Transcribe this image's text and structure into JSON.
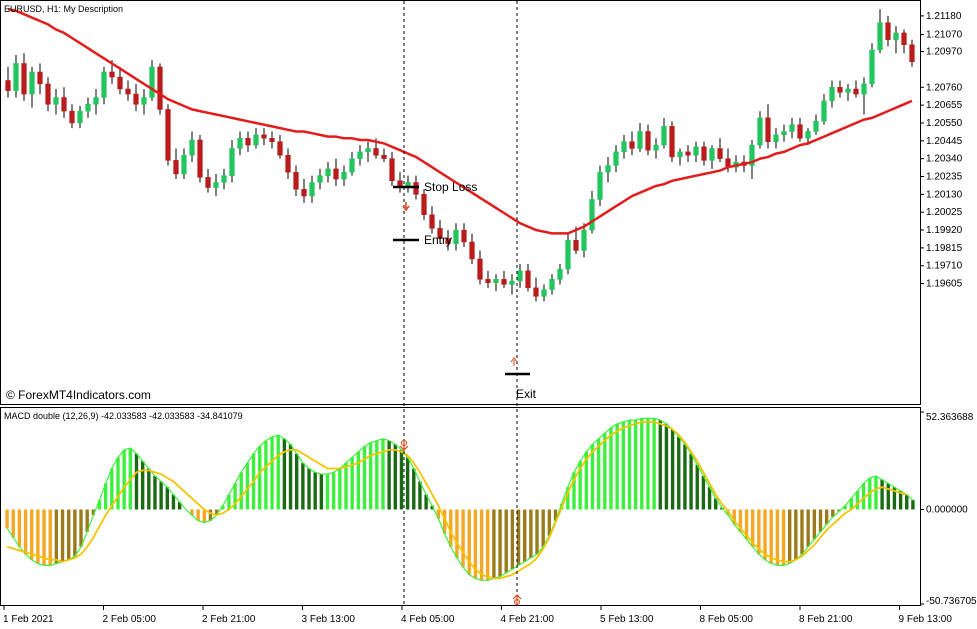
{
  "colors": {
    "bull": "#22c55e",
    "bear": "#b91c1c",
    "ma": "#e31b1b",
    "hist_bull_bright": "#3ef03e",
    "hist_bull_dark": "#1a6a14",
    "hist_bear_bright": "#f5a623",
    "hist_bear_dark": "#9a7a1a",
    "signal": "#f5c400",
    "axis": "#000000"
  },
  "main": {
    "title": "EURUSD, H1:  My Description",
    "watermark": "© ForexMT4Indicators.com",
    "annotations": {
      "stop_loss": "Stop Loss",
      "entry": "Entry",
      "exit": "Exit"
    }
  },
  "sub": {
    "title": "MACD double (12,26,9) -42.033583 -42.033583 -34.841079",
    "y_ticks": [
      "52.363688",
      "0.000000",
      "-50.736705"
    ]
  },
  "chart_data": [
    {
      "type": "candlestick",
      "title": "EURUSD, H1:  My Description",
      "ylim": [
        1.1892,
        1.2125
      ],
      "y_ticks": [
        1.2118,
        1.2107,
        1.2097,
        1.2076,
        1.20655,
        1.2055,
        1.20445,
        1.2034,
        1.20235,
        1.2013,
        1.20025,
        1.1992,
        1.19815,
        1.1971,
        1.19605
      ],
      "x_ticks": [
        "1 Feb 2021",
        "2 Feb 05:00",
        "2 Feb 21:00",
        "3 Feb 13:00",
        "4 Feb 05:00",
        "4 Feb 21:00",
        "5 Feb 13:00",
        "8 Feb 05:00",
        "8 Feb 21:00",
        "9 Feb 13:00"
      ],
      "candles": [
        [
          1.208,
          1.2088,
          1.207,
          1.2074
        ],
        [
          1.2074,
          1.2095,
          1.207,
          1.209
        ],
        [
          1.209,
          1.2096,
          1.2068,
          1.2072
        ],
        [
          1.2072,
          1.2088,
          1.2064,
          1.2085
        ],
        [
          1.2085,
          1.209,
          1.2072,
          1.2078
        ],
        [
          1.2078,
          1.2082,
          1.2062,
          1.2066
        ],
        [
          1.2066,
          1.2075,
          1.206,
          1.207
        ],
        [
          1.207,
          1.2076,
          1.2058,
          1.2062
        ],
        [
          1.2062,
          1.2066,
          1.2052,
          1.2055
        ],
        [
          1.2055,
          1.2065,
          1.2052,
          1.2062
        ],
        [
          1.2062,
          1.207,
          1.2058,
          1.2066
        ],
        [
          1.2066,
          1.2075,
          1.206,
          1.207
        ],
        [
          1.207,
          1.2088,
          1.2066,
          1.2085
        ],
        [
          1.2085,
          1.2092,
          1.2078,
          1.2082
        ],
        [
          1.2082,
          1.2088,
          1.2072,
          1.2075
        ],
        [
          1.2075,
          1.208,
          1.2068,
          1.2072
        ],
        [
          1.2072,
          1.2078,
          1.2062,
          1.2066
        ],
        [
          1.2066,
          1.2075,
          1.206,
          1.207
        ],
        [
          1.207,
          1.2092,
          1.2068,
          1.2088
        ],
        [
          1.2088,
          1.209,
          1.206,
          1.2063
        ],
        [
          1.2063,
          1.2066,
          1.203,
          1.2033
        ],
        [
          1.2033,
          1.204,
          1.2022,
          1.2025
        ],
        [
          1.2025,
          1.204,
          1.2022,
          1.2036
        ],
        [
          1.2036,
          1.205,
          1.2032,
          1.2045
        ],
        [
          1.2045,
          1.2048,
          1.202,
          1.2023
        ],
        [
          1.2023,
          1.2028,
          1.2014,
          1.2017
        ],
        [
          1.2017,
          1.2025,
          1.2012,
          1.202
        ],
        [
          1.202,
          1.2028,
          1.2016,
          1.2024
        ],
        [
          1.2024,
          1.2045,
          1.202,
          1.204
        ],
        [
          1.204,
          1.205,
          1.2036,
          1.2046
        ],
        [
          1.2046,
          1.205,
          1.2038,
          1.2042
        ],
        [
          1.2042,
          1.2052,
          1.204,
          1.2048
        ],
        [
          1.2048,
          1.2052,
          1.2042,
          1.2046
        ],
        [
          1.2046,
          1.205,
          1.204,
          1.2044
        ],
        [
          1.2044,
          1.2048,
          1.2034,
          1.2036
        ],
        [
          1.2036,
          1.204,
          1.2022,
          1.2026
        ],
        [
          1.2026,
          1.203,
          1.2012,
          1.2016
        ],
        [
          1.2016,
          1.2022,
          1.2008,
          1.2012
        ],
        [
          1.2012,
          1.2024,
          1.2008,
          1.202
        ],
        [
          1.202,
          1.2028,
          1.2016,
          1.2024
        ],
        [
          1.2024,
          1.2032,
          1.202,
          1.2028
        ],
        [
          1.2028,
          1.2034,
          1.2018,
          1.2022
        ],
        [
          1.2022,
          1.203,
          1.2018,
          1.2026
        ],
        [
          1.2026,
          1.2038,
          1.2024,
          1.2034
        ],
        [
          1.2034,
          1.2042,
          1.203,
          1.2038
        ],
        [
          1.2038,
          1.2044,
          1.2032,
          1.204
        ],
        [
          1.204,
          1.2046,
          1.2034,
          1.2036
        ],
        [
          1.2036,
          1.204,
          1.2032,
          1.2034
        ],
        [
          1.2034,
          1.2038,
          1.2018,
          1.2021
        ],
        [
          1.2021,
          1.2026,
          1.2014,
          1.2018
        ],
        [
          1.2018,
          1.2024,
          1.2014,
          1.202
        ],
        [
          1.202,
          1.2024,
          1.201,
          1.2013
        ],
        [
          1.2013,
          1.2016,
          1.1998,
          1.2001
        ],
        [
          1.2001,
          1.2006,
          1.199,
          1.1993
        ],
        [
          1.1993,
          1.1998,
          1.1984,
          1.1987
        ],
        [
          1.1987,
          1.1992,
          1.198,
          1.1984
        ],
        [
          1.1984,
          1.1996,
          1.198,
          1.1992
        ],
        [
          1.1992,
          1.1996,
          1.1982,
          1.1985
        ],
        [
          1.1985,
          1.199,
          1.1972,
          1.1975
        ],
        [
          1.1975,
          1.198,
          1.196,
          1.1963
        ],
        [
          1.1963,
          1.1968,
          1.1958,
          1.1961
        ],
        [
          1.1961,
          1.1966,
          1.1956,
          1.1963
        ],
        [
          1.1963,
          1.1968,
          1.1958,
          1.196
        ],
        [
          1.196,
          1.1966,
          1.1954,
          1.1962
        ],
        [
          1.1962,
          1.1972,
          1.1958,
          1.1968
        ],
        [
          1.1968,
          1.1972,
          1.1956,
          1.1958
        ],
        [
          1.1958,
          1.1964,
          1.195,
          1.1953
        ],
        [
          1.1953,
          1.196,
          1.195,
          1.1957
        ],
        [
          1.1957,
          1.1966,
          1.1954,
          1.1963
        ],
        [
          1.1963,
          1.1972,
          1.196,
          1.1969
        ],
        [
          1.1969,
          1.199,
          1.1966,
          1.1986
        ],
        [
          1.1986,
          1.1994,
          1.1978,
          1.198
        ],
        [
          1.198,
          1.1996,
          1.1976,
          1.1992
        ],
        [
          1.1992,
          1.2015,
          1.199,
          1.201
        ],
        [
          1.201,
          1.203,
          1.2006,
          1.2026
        ],
        [
          1.2026,
          1.2035,
          1.202,
          1.203
        ],
        [
          1.203,
          1.2042,
          1.2026,
          1.2038
        ],
        [
          1.2038,
          1.2048,
          1.2034,
          1.2044
        ],
        [
          1.2044,
          1.205,
          1.2036,
          1.204
        ],
        [
          1.204,
          1.2055,
          1.2038,
          1.205
        ],
        [
          1.205,
          1.2054,
          1.2036,
          1.2039
        ],
        [
          1.2039,
          1.2046,
          1.2034,
          1.2042
        ],
        [
          1.2042,
          1.2058,
          1.204,
          1.2053
        ],
        [
          1.2053,
          1.2056,
          1.2032,
          1.2035
        ],
        [
          1.2035,
          1.204,
          1.203,
          1.2038
        ],
        [
          1.2038,
          1.2042,
          1.2032,
          1.2036
        ],
        [
          1.2036,
          1.2044,
          1.2032,
          1.2041
        ],
        [
          1.2041,
          1.2044,
          1.203,
          1.2033
        ],
        [
          1.2033,
          1.2042,
          1.2028,
          1.204
        ],
        [
          1.204,
          1.2046,
          1.2032,
          1.2034
        ],
        [
          1.2034,
          1.204,
          1.2026,
          1.2029
        ],
        [
          1.2029,
          1.2036,
          1.2026,
          1.2032
        ],
        [
          1.2032,
          1.2036,
          1.2026,
          1.203
        ],
        [
          1.203,
          1.2045,
          1.2022,
          1.2042
        ],
        [
          1.2042,
          1.2062,
          1.204,
          1.2058
        ],
        [
          1.2058,
          1.2066,
          1.204,
          1.2044
        ],
        [
          1.2044,
          1.2052,
          1.204,
          1.2048
        ],
        [
          1.2048,
          1.2054,
          1.2044,
          1.205
        ],
        [
          1.205,
          1.2058,
          1.2046,
          1.2054
        ],
        [
          1.2054,
          1.2058,
          1.2044,
          1.2046
        ],
        [
          1.2046,
          1.2052,
          1.2042,
          1.205
        ],
        [
          1.205,
          1.206,
          1.2048,
          1.2056
        ],
        [
          1.2056,
          1.2072,
          1.2054,
          1.2068
        ],
        [
          1.2068,
          1.208,
          1.2064,
          1.2076
        ],
        [
          1.2076,
          1.208,
          1.207,
          1.2073
        ],
        [
          1.2073,
          1.2078,
          1.2068,
          1.2075
        ],
        [
          1.2075,
          1.208,
          1.207,
          1.2072
        ],
        [
          1.2072,
          1.2082,
          1.206,
          1.2078
        ],
        [
          1.2078,
          1.2102,
          1.2076,
          1.2098
        ],
        [
          1.2098,
          1.2122,
          1.2096,
          1.2114
        ],
        [
          1.2114,
          1.2118,
          1.21,
          1.2104
        ],
        [
          1.2104,
          1.2112,
          1.2096,
          1.2108
        ],
        [
          1.2108,
          1.211,
          1.2096,
          1.2101
        ],
        [
          1.2101,
          1.2104,
          1.2088,
          1.2091
        ]
      ],
      "ma": [
        1.2122,
        1.2121,
        1.2119,
        1.2117,
        1.2115,
        1.2113,
        1.211,
        1.2108,
        1.2105,
        1.2102,
        1.2099,
        1.2096,
        1.2093,
        1.209,
        1.2087,
        1.2084,
        1.2081,
        1.2078,
        1.2075,
        1.2072,
        1.2069,
        1.2067,
        1.2065,
        1.2063,
        1.2062,
        1.2061,
        1.206,
        1.2059,
        1.2058,
        1.2057,
        1.2056,
        1.2055,
        1.2054,
        1.2053,
        1.2052,
        1.2051,
        1.205,
        1.205,
        1.2049,
        1.2048,
        1.2047,
        1.2047,
        1.2046,
        1.2046,
        1.2045,
        1.2045,
        1.2044,
        1.2043,
        1.2041,
        1.2039,
        1.2037,
        1.2035,
        1.2032,
        1.2029,
        1.2026,
        1.2023,
        1.202,
        1.2017,
        1.2014,
        1.2011,
        1.2008,
        1.2005,
        1.2002,
        1.1999,
        1.1996,
        1.1994,
        1.1992,
        1.1991,
        1.199,
        1.199,
        1.199,
        1.1992,
        1.1994,
        1.1997,
        1.2,
        1.2003,
        1.2006,
        1.2009,
        1.2012,
        1.2014,
        1.2016,
        1.2018,
        1.2019,
        1.2021,
        1.2022,
        1.2023,
        1.2024,
        1.2025,
        1.2026,
        1.2027,
        1.2029,
        1.203,
        1.2031,
        1.2032,
        1.2034,
        1.2035,
        1.2037,
        1.2038,
        1.204,
        1.2042,
        1.2043,
        1.2045,
        1.2047,
        1.2049,
        1.2051,
        1.2053,
        1.2055,
        1.2057,
        1.2058,
        1.206,
        1.2062,
        1.2064,
        1.2066,
        1.2068
      ]
    },
    {
      "type": "histogram+line",
      "title": "MACD double (12,26,9) -42.033583 -42.033583 -34.841079",
      "ylim": [
        -50.736705,
        52.363688
      ],
      "y_ticks": [
        52.363688,
        0.0,
        -50.736705
      ],
      "histogram": [
        -10,
        -15,
        -20,
        -24,
        -27,
        -29,
        -30,
        -30,
        -29,
        -28,
        -27,
        -25,
        -20,
        -12,
        -3,
        5,
        14,
        22,
        28,
        32,
        33,
        30,
        26,
        22,
        18,
        15,
        12,
        8,
        4,
        0,
        -3,
        -6,
        -7,
        -6,
        -3,
        2,
        8,
        14,
        20,
        25,
        30,
        34,
        37,
        39,
        40,
        38,
        35,
        30,
        25,
        22,
        20,
        19,
        19,
        20,
        22,
        25,
        28,
        31,
        34,
        36,
        37,
        38,
        37,
        35,
        32,
        28,
        22,
        15,
        8,
        2,
        -5,
        -13,
        -20,
        -26,
        -31,
        -35,
        -37,
        -38,
        -38,
        -37,
        -36,
        -34,
        -32,
        -30,
        -28,
        -26,
        -24,
        -20,
        -14,
        -6,
        3,
        12,
        20,
        26,
        31,
        35,
        38,
        41,
        44,
        46,
        47,
        48,
        48,
        49,
        49,
        49,
        48,
        46,
        43,
        39,
        35,
        30,
        24,
        18,
        12,
        6,
        1,
        -3,
        -8,
        -12,
        -16,
        -20,
        -24,
        -27,
        -29,
        -30,
        -30,
        -29,
        -27,
        -24,
        -20,
        -16,
        -12,
        -8,
        -4,
        -1,
        2,
        6,
        10,
        14,
        17,
        18,
        16,
        14,
        12,
        10,
        8,
        5
      ],
      "signal": [
        -20,
        -21,
        -22,
        -23,
        -24,
        -25,
        -26,
        -27,
        -27,
        -28,
        -27,
        -26,
        -24,
        -20,
        -15,
        -9,
        -3,
        2,
        7,
        12,
        16,
        20,
        21,
        21,
        20,
        19,
        17,
        15,
        12,
        9,
        6,
        3,
        0,
        -2,
        -3,
        -2,
        0,
        3,
        7,
        11,
        15,
        20,
        23,
        26,
        29,
        31,
        32,
        32,
        30,
        28,
        26,
        24,
        22,
        22,
        22,
        23,
        24,
        25,
        27,
        29,
        30,
        31,
        32,
        32,
        31,
        29,
        25,
        20,
        14,
        8,
        2,
        -5,
        -12,
        -18,
        -23,
        -28,
        -32,
        -35,
        -36,
        -37,
        -37,
        -36,
        -35,
        -33,
        -31,
        -29,
        -26,
        -21,
        -15,
        -7,
        1,
        9,
        16,
        22,
        27,
        31,
        34,
        37,
        40,
        42,
        44,
        45,
        46,
        47,
        47,
        47,
        46,
        45,
        43,
        40,
        36,
        31,
        26,
        20,
        14,
        8,
        3,
        -1,
        -6,
        -10,
        -14,
        -18,
        -21,
        -24,
        -26,
        -27,
        -28,
        -28,
        -27,
        -25,
        -22,
        -19,
        -15,
        -11,
        -8,
        -5,
        -2,
        0,
        3,
        6,
        9,
        11,
        12,
        11,
        10,
        9,
        8
      ]
    }
  ]
}
